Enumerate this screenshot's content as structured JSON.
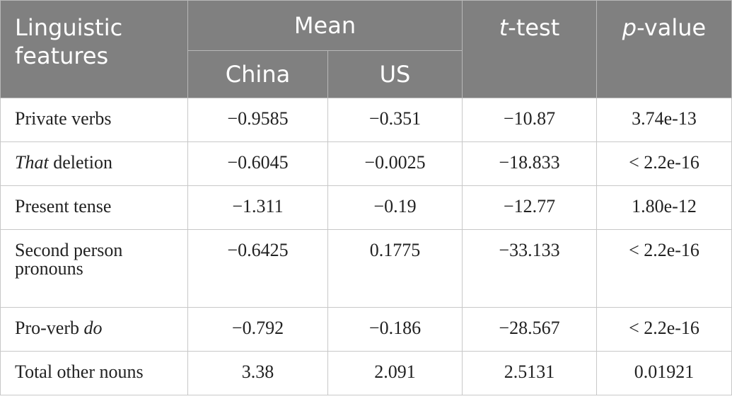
{
  "header": {
    "features": "Linguistic features",
    "mean": "Mean",
    "china": "China",
    "us": "US",
    "ttest": [
      "t",
      "-test"
    ],
    "pvalue": [
      "p",
      "-value"
    ]
  },
  "table": {
    "rows": [
      [
        [
          "Private verbs"
        ],
        "−0.9585",
        "−0.351",
        "−10.87",
        "3.74e-13"
      ],
      [
        [
          "That",
          " deletion"
        ],
        "−0.6045",
        "−0.0025",
        "−18.833",
        "< 2.2e-16"
      ],
      [
        [
          "Present tense"
        ],
        "−1.311",
        "−0.19",
        "−12.77",
        "1.80e-12"
      ],
      [
        [
          "Second person pronouns"
        ],
        "−0.6425",
        "0.1775",
        "−33.133",
        "< 2.2e-16"
      ],
      [
        [
          "Pro-verb ",
          "do"
        ],
        "−0.792",
        "−0.186",
        "−28.567",
        "< 2.2e-16"
      ],
      [
        [
          "Total other nouns"
        ],
        "3.38",
        "2.091",
        "2.5131",
        "0.01921"
      ]
    ]
  }
}
